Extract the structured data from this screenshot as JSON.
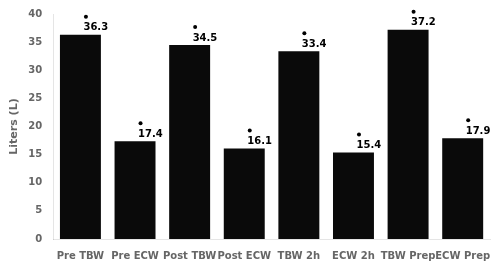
{
  "chart_data": {
    "type": "bar",
    "categories": [
      "Pre TBW",
      "Pre ECW",
      "Post TBW",
      "Post ECW",
      "TBW 2h",
      "ECW 2h",
      "TBW Prep",
      "ECW Prep"
    ],
    "values": [
      36.3,
      17.4,
      34.5,
      16.1,
      33.4,
      15.4,
      37.2,
      17.9
    ],
    "color": "#0a0a0a",
    "ylabel": "Liters (L)",
    "ylim": [
      0,
      40
    ],
    "yticks": [
      0,
      5,
      10,
      15,
      20,
      25,
      30,
      35,
      40
    ],
    "grid": false,
    "data_labels": true,
    "marker": "dot"
  }
}
